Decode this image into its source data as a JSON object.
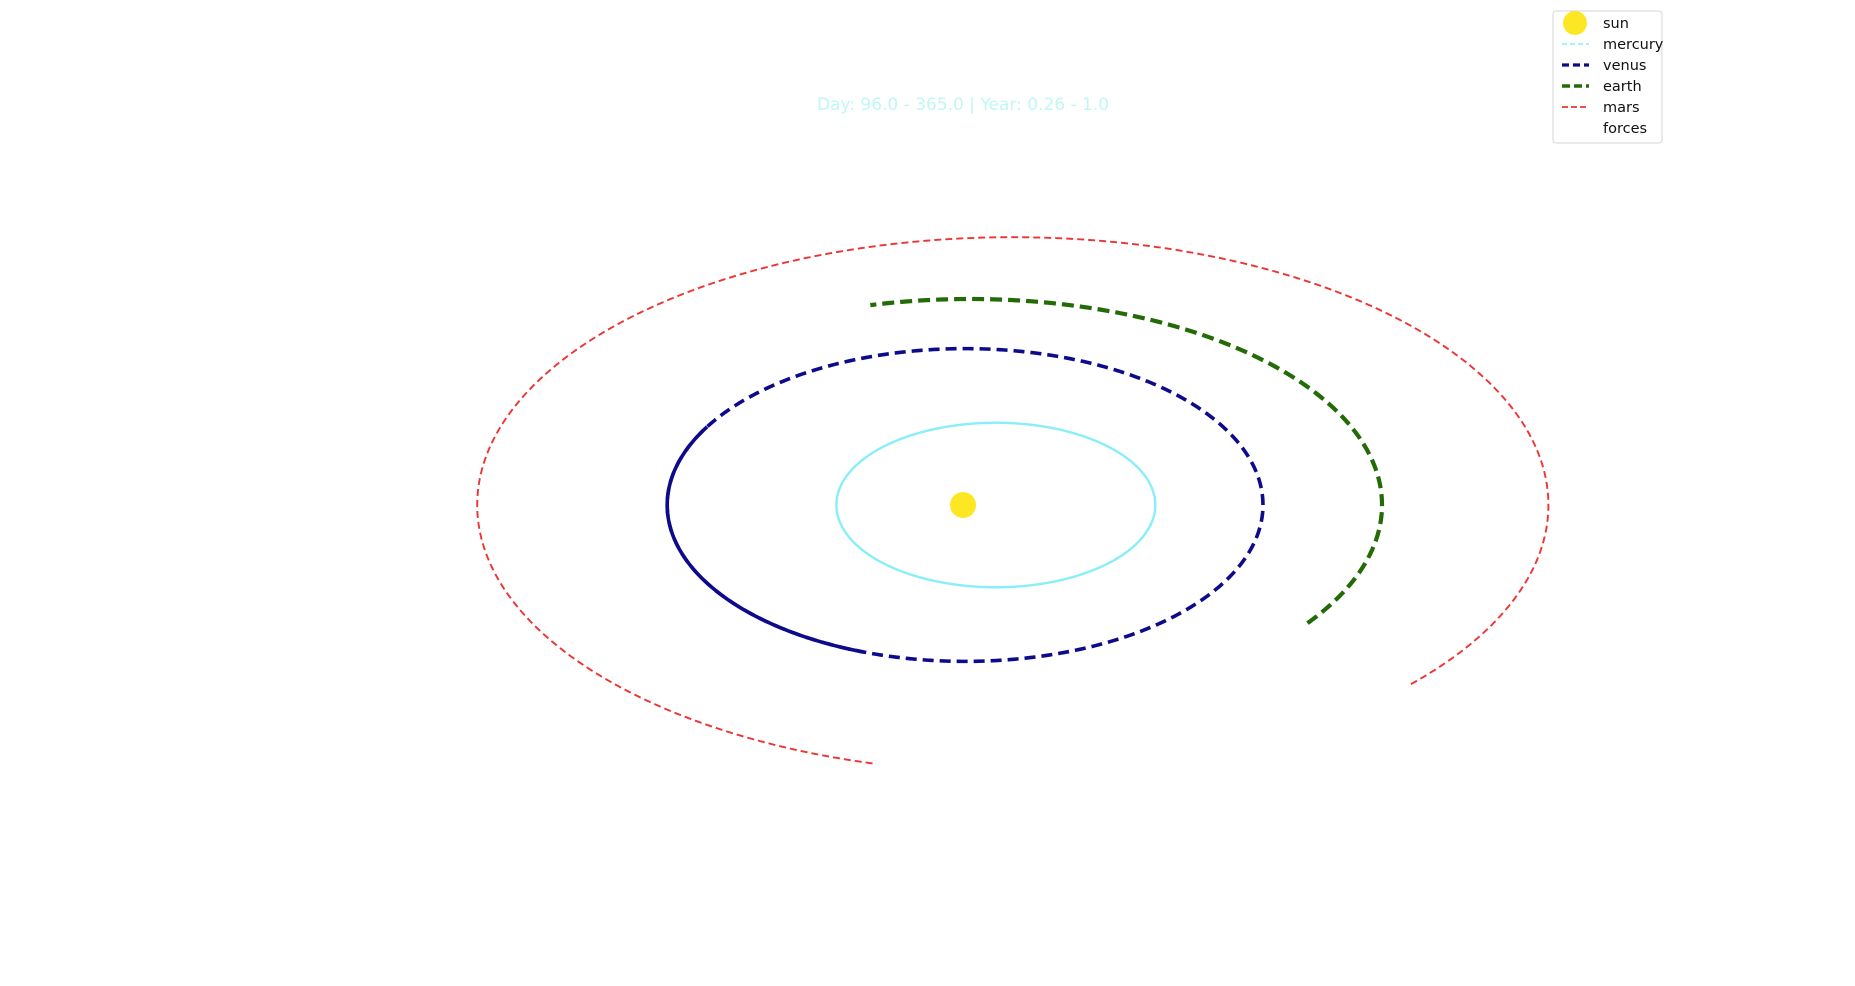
{
  "chart_data": {
    "type": "line",
    "title": "Day: 96.0 - 365.0 | Year: 0.26 - 1.0",
    "axes_visible": false,
    "grid": false,
    "legend_placement": "top-right",
    "xlim": [
      -1.62,
      1.62
    ],
    "ylim": [
      -1.72,
      1.72
    ],
    "sun": {
      "name": "sun",
      "x": 0,
      "y": 0,
      "color": "#fde725"
    },
    "orbits": [
      {
        "name": "mercury",
        "color": "#88eef9",
        "a": 0.387,
        "e": 0.206,
        "y_scale": 0.516,
        "dashed": false,
        "start_deg": 0,
        "end_deg": 360
      },
      {
        "name": "venus",
        "color": "#0d0a8c",
        "a": 0.723,
        "e": 0.007,
        "y_scale": 0.525,
        "dashed": true,
        "start_deg": 0,
        "end_deg": 360,
        "solid_from_deg": 150,
        "solid_to_deg": 250
      },
      {
        "name": "earth",
        "color": "#226b06",
        "a": 1.0,
        "e": 0.017,
        "y_scale": 0.5,
        "dashed": true,
        "start_deg": -35,
        "end_deg": 104
      },
      {
        "name": "mars",
        "color": "#ee3333",
        "a": 1.3,
        "e": 0.093,
        "y_scale": 0.5,
        "dashed": true,
        "start_deg": -42,
        "end_deg": 255
      }
    ],
    "legend": [
      {
        "label": "sun",
        "color": "#fde725",
        "marker": "circle"
      },
      {
        "label": "mercury",
        "color": "#88eef9",
        "marker": "dash-line"
      },
      {
        "label": "venus",
        "color": "#0d0a8c",
        "marker": "dash-line"
      },
      {
        "label": "earth",
        "color": "#226b06",
        "marker": "dash-line"
      },
      {
        "label": "mars",
        "color": "#ee3333",
        "marker": "dash-line"
      },
      {
        "label": "forces",
        "color": "#ffffff",
        "marker": "none"
      }
    ]
  }
}
